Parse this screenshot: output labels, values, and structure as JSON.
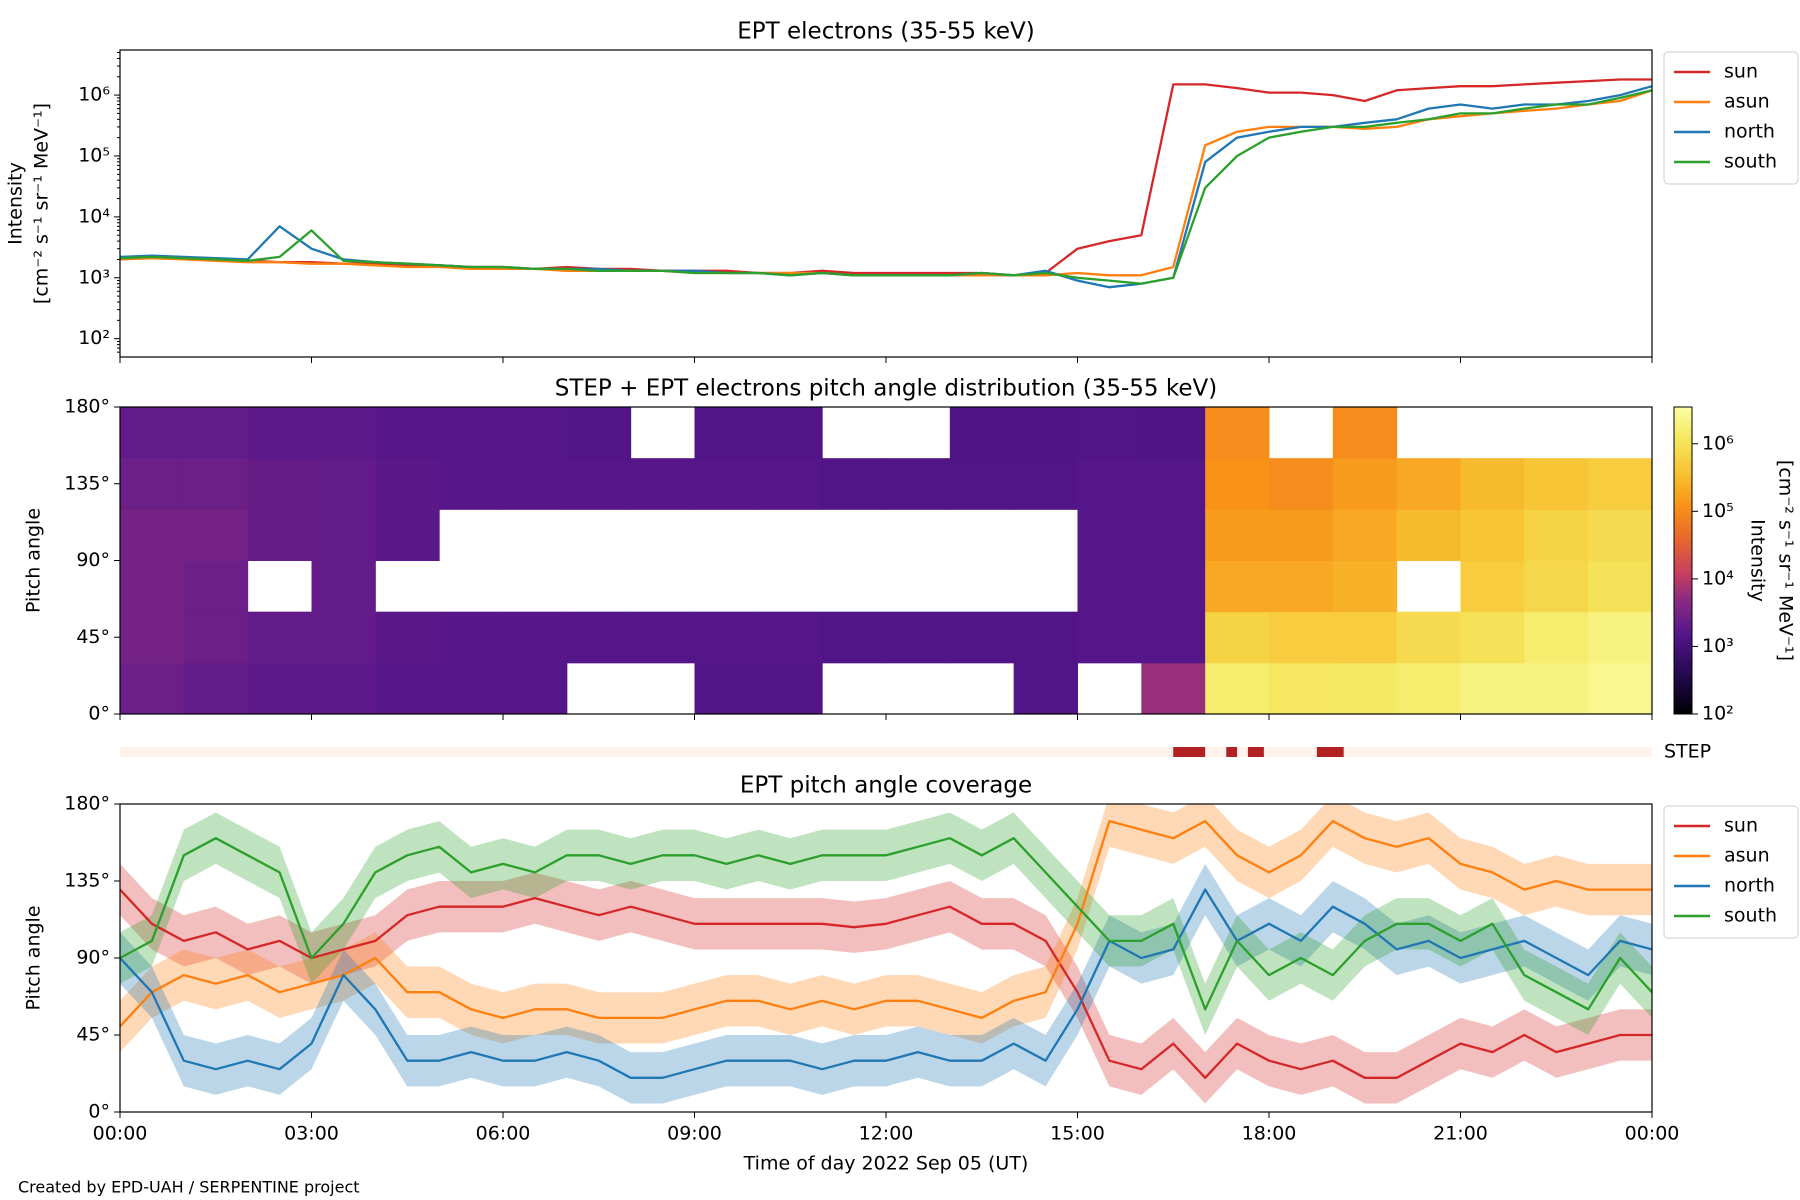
{
  "chart_data": [
    {
      "type": "line",
      "title": "EPT electrons (35-55 keV)",
      "ylabel": [
        "Intensity",
        "[cm⁻² s⁻¹ sr⁻¹ MeV⁻¹]"
      ],
      "log_y": true,
      "legend": "outside right",
      "xlim": [
        0,
        24
      ],
      "ylim": [
        50,
        5500000
      ],
      "yticks": [
        {
          "value": 100,
          "label": "10²"
        },
        {
          "value": 1000,
          "label": "10³"
        },
        {
          "value": 10000,
          "label": "10⁴"
        },
        {
          "value": 100000,
          "label": "10⁵"
        },
        {
          "value": 1000000,
          "label": "10⁶"
        }
      ],
      "x": [
        0,
        0.5,
        1,
        1.5,
        2,
        2.5,
        3,
        3.5,
        4,
        4.5,
        5,
        5.5,
        6,
        6.5,
        7,
        7.5,
        8,
        8.5,
        9,
        9.5,
        10,
        10.5,
        11,
        11.5,
        12,
        12.5,
        13,
        13.5,
        14,
        14.5,
        15,
        15.5,
        16,
        16.5,
        17,
        17.5,
        18,
        18.5,
        19,
        19.5,
        20,
        20.5,
        21,
        21.5,
        22,
        22.5,
        23,
        23.5,
        24
      ],
      "series": [
        {
          "name": "sun",
          "color": "#d62728",
          "values": [
            2000,
            2200,
            2100,
            2000,
            1900,
            1800,
            1800,
            1700,
            1700,
            1600,
            1600,
            1500,
            1500,
            1400,
            1500,
            1400,
            1400,
            1300,
            1300,
            1300,
            1200,
            1200,
            1300,
            1200,
            1200,
            1200,
            1200,
            1200,
            1100,
            1200,
            3000,
            4000,
            5000,
            1500000,
            1500000,
            1300000,
            1100000,
            1100000,
            1000000,
            800000,
            1200000,
            1300000,
            1400000,
            1400000,
            1500000,
            1600000,
            1700000,
            1800000,
            1800000
          ]
        },
        {
          "name": "asun",
          "color": "#ff7f0e",
          "values": [
            2000,
            2100,
            2000,
            1900,
            1800,
            1800,
            1700,
            1700,
            1600,
            1500,
            1500,
            1400,
            1400,
            1400,
            1300,
            1300,
            1300,
            1300,
            1200,
            1200,
            1200,
            1200,
            1200,
            1100,
            1100,
            1100,
            1100,
            1100,
            1100,
            1100,
            1200,
            1100,
            1100,
            1500,
            150000,
            250000,
            300000,
            300000,
            300000,
            280000,
            300000,
            400000,
            450000,
            500000,
            550000,
            600000,
            700000,
            800000,
            1200000
          ]
        },
        {
          "name": "north",
          "color": "#1f77b4",
          "values": [
            2200,
            2300,
            2200,
            2100,
            2000,
            7000,
            3000,
            2000,
            1800,
            1700,
            1600,
            1500,
            1500,
            1400,
            1400,
            1400,
            1300,
            1300,
            1300,
            1200,
            1200,
            1100,
            1200,
            1100,
            1100,
            1100,
            1100,
            1200,
            1100,
            1300,
            900,
            700,
            800,
            1000,
            80000,
            200000,
            250000,
            300000,
            300000,
            350000,
            400000,
            600000,
            700000,
            600000,
            700000,
            700000,
            800000,
            1000000,
            1400000
          ]
        },
        {
          "name": "south",
          "color": "#2ca02c",
          "values": [
            2100,
            2200,
            2100,
            2000,
            1900,
            2200,
            6000,
            1900,
            1800,
            1700,
            1600,
            1500,
            1500,
            1400,
            1400,
            1300,
            1300,
            1300,
            1200,
            1200,
            1200,
            1100,
            1200,
            1100,
            1100,
            1100,
            1100,
            1200,
            1100,
            1200,
            1000,
            900,
            800,
            1000,
            30000,
            100000,
            200000,
            250000,
            300000,
            300000,
            350000,
            400000,
            500000,
            500000,
            600000,
            700000,
            700000,
            900000,
            1200000
          ]
        }
      ]
    },
    {
      "type": "heatmap",
      "title": "STEP + EPT electrons pitch angle distribution (35-55 keV)",
      "ylabel": "Pitch angle",
      "colormap": "inferno",
      "log_color": true,
      "xlim": [
        0,
        24
      ],
      "ylim": [
        0,
        180
      ],
      "yticks": [
        {
          "value": 0,
          "label": "0°"
        },
        {
          "value": 45,
          "label": "45°"
        },
        {
          "value": 90,
          "label": "90°"
        },
        {
          "value": 135,
          "label": "135°"
        },
        {
          "value": 180,
          "label": "180°"
        }
      ],
      "x_edges": [
        0,
        1,
        2,
        3,
        4,
        5,
        6,
        7,
        8,
        9,
        10,
        11,
        12,
        13,
        14,
        15,
        16,
        17,
        18,
        19,
        20,
        21,
        22,
        23,
        24
      ],
      "y_edges": [
        0,
        30,
        60,
        90,
        120,
        150,
        180
      ],
      "values": [
        [
          2500,
          3000,
          3000,
          3000,
          2500,
          2000
        ],
        [
          2000,
          2500,
          2500,
          3000,
          2500,
          2000
        ],
        [
          1800,
          2000,
          null,
          2200,
          2200,
          1800
        ],
        [
          1800,
          2000,
          2000,
          2000,
          2000,
          1800
        ],
        [
          1500,
          1700,
          null,
          1700,
          1700,
          1600
        ],
        [
          1500,
          1600,
          null,
          null,
          1600,
          1500
        ],
        [
          1500,
          1600,
          null,
          null,
          1600,
          1500
        ],
        [
          null,
          1500,
          null,
          null,
          1500,
          1400
        ],
        [
          null,
          1500,
          null,
          null,
          1500,
          null
        ],
        [
          1400,
          1500,
          null,
          null,
          1500,
          1400
        ],
        [
          1400,
          1500,
          null,
          null,
          1500,
          1400
        ],
        [
          null,
          1400,
          null,
          null,
          1400,
          null
        ],
        [
          null,
          1400,
          null,
          null,
          1400,
          null
        ],
        [
          null,
          1400,
          null,
          null,
          1400,
          1300
        ],
        [
          1400,
          1400,
          null,
          null,
          1400,
          1300
        ],
        [
          null,
          1500,
          1500,
          1500,
          1500,
          1400
        ],
        [
          6000,
          1500,
          1500,
          1500,
          1500,
          1300
        ],
        [
          1500000,
          600000,
          200000,
          150000,
          120000,
          100000
        ],
        [
          1200000,
          500000,
          200000,
          150000,
          100000,
          null
        ],
        [
          1300000,
          500000,
          250000,
          200000,
          150000,
          100000
        ],
        [
          1500000,
          800000,
          null,
          300000,
          200000,
          null
        ],
        [
          2000000,
          1000000,
          500000,
          400000,
          300000,
          null
        ],
        [
          2000000,
          1500000,
          700000,
          600000,
          400000,
          null
        ],
        [
          2500000,
          2000000,
          1000000,
          800000,
          500000,
          null
        ]
      ],
      "clim": [
        100,
        3500000
      ],
      "cticks": [
        {
          "value": 100,
          "label": "10²"
        },
        {
          "value": 1000,
          "label": "10³"
        },
        {
          "value": 10000,
          "label": "10⁴"
        },
        {
          "value": 100000,
          "label": "10⁵"
        },
        {
          "value": 1000000,
          "label": "10⁶"
        }
      ],
      "clabel": [
        "Intensity",
        "[cm⁻² s⁻¹ sr⁻¹ MeV⁻¹]"
      ]
    },
    {
      "type": "timeline",
      "label": "STEP",
      "xlim": [
        0,
        24
      ],
      "color": "#b22222",
      "background": "#fff1ec",
      "intervals": [
        [
          16.5,
          17.0
        ],
        [
          17.33,
          17.5
        ],
        [
          17.67,
          17.92
        ],
        [
          18.75,
          19.17
        ]
      ]
    },
    {
      "type": "line",
      "title": "EPT pitch angle coverage",
      "ylabel": "Pitch angle",
      "xlabel": "Time of day 2022 Sep 05 (UT)",
      "legend": "outside right",
      "xlim": [
        0,
        24
      ],
      "ylim": [
        0,
        180
      ],
      "yticks": [
        {
          "value": 0,
          "label": "0°"
        },
        {
          "value": 45,
          "label": "45°"
        },
        {
          "value": 90,
          "label": "90°"
        },
        {
          "value": 135,
          "label": "135°"
        },
        {
          "value": 180,
          "label": "180°"
        }
      ],
      "xticks": [
        {
          "value": 0,
          "label": "00:00"
        },
        {
          "value": 3,
          "label": "03:00"
        },
        {
          "value": 6,
          "label": "06:00"
        },
        {
          "value": 9,
          "label": "09:00"
        },
        {
          "value": 12,
          "label": "12:00"
        },
        {
          "value": 15,
          "label": "15:00"
        },
        {
          "value": 18,
          "label": "18:00"
        },
        {
          "value": 21,
          "label": "21:00"
        },
        {
          "value": 24,
          "label": "00:00"
        }
      ],
      "x": [
        0,
        0.5,
        1,
        1.5,
        2,
        2.5,
        3,
        3.5,
        4,
        4.5,
        5,
        5.5,
        6,
        6.5,
        7,
        7.5,
        8,
        8.5,
        9,
        9.5,
        10,
        10.5,
        11,
        11.5,
        12,
        12.5,
        13,
        13.5,
        14,
        14.5,
        15,
        15.5,
        16,
        16.5,
        17,
        17.5,
        18,
        18.5,
        19,
        19.5,
        20,
        20.5,
        21,
        21.5,
        22,
        22.5,
        23,
        23.5,
        24
      ],
      "series": [
        {
          "name": "sun",
          "color": "#d62728",
          "error": 15,
          "values": [
            130,
            110,
            100,
            105,
            95,
            100,
            90,
            95,
            100,
            115,
            120,
            120,
            120,
            125,
            120,
            115,
            120,
            115,
            110,
            110,
            110,
            110,
            110,
            108,
            110,
            115,
            120,
            110,
            110,
            100,
            70,
            30,
            25,
            40,
            20,
            40,
            30,
            25,
            30,
            20,
            20,
            30,
            40,
            35,
            45,
            35,
            40,
            45,
            45
          ]
        },
        {
          "name": "asun",
          "color": "#ff7f0e",
          "error": 15,
          "values": [
            50,
            70,
            80,
            75,
            80,
            70,
            75,
            80,
            90,
            70,
            70,
            60,
            55,
            60,
            60,
            55,
            55,
            55,
            60,
            65,
            65,
            60,
            65,
            60,
            65,
            65,
            60,
            55,
            65,
            70,
            110,
            170,
            165,
            160,
            170,
            150,
            140,
            150,
            170,
            160,
            155,
            160,
            145,
            140,
            130,
            135,
            130,
            130,
            130
          ]
        },
        {
          "name": "north",
          "color": "#1f77b4",
          "error": 15,
          "values": [
            90,
            70,
            30,
            25,
            30,
            25,
            40,
            80,
            60,
            30,
            30,
            35,
            30,
            30,
            35,
            30,
            20,
            20,
            25,
            30,
            30,
            30,
            25,
            30,
            30,
            35,
            30,
            30,
            40,
            30,
            60,
            100,
            90,
            95,
            130,
            100,
            110,
            100,
            120,
            110,
            95,
            100,
            90,
            95,
            100,
            90,
            80,
            100,
            95
          ]
        },
        {
          "name": "south",
          "color": "#2ca02c",
          "error": 15,
          "values": [
            90,
            100,
            150,
            160,
            150,
            140,
            90,
            110,
            140,
            150,
            155,
            140,
            145,
            140,
            150,
            150,
            145,
            150,
            150,
            145,
            150,
            145,
            150,
            150,
            150,
            155,
            160,
            150,
            160,
            140,
            120,
            100,
            100,
            110,
            60,
            100,
            80,
            90,
            80,
            100,
            110,
            110,
            100,
            110,
            80,
            70,
            60,
            90,
            70
          ]
        }
      ]
    }
  ],
  "footer": "Created by EPD-UAH / SERPENTINE project"
}
